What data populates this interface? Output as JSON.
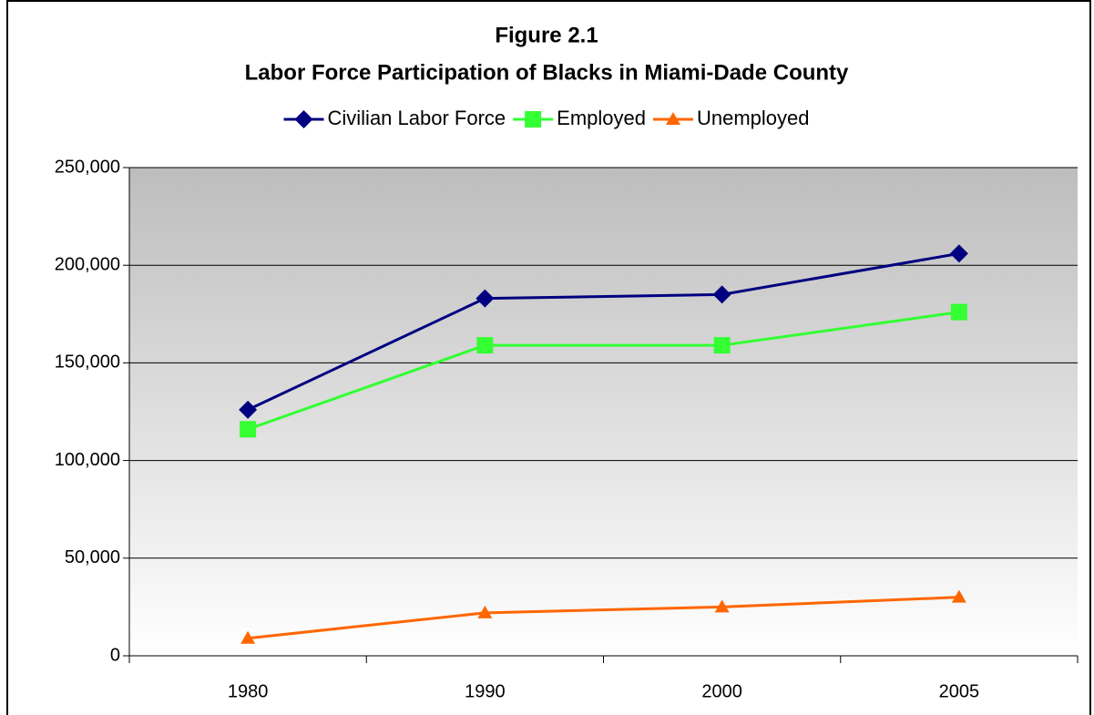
{
  "chart_data": {
    "type": "line",
    "title": "Figure 2.1",
    "subtitle": "Labor Force Participation of Blacks in Miami-Dade County",
    "categories": [
      "1980",
      "1990",
      "2000",
      "2005"
    ],
    "series": [
      {
        "name": "Civilian Labor Force",
        "color": "#000080",
        "marker": "diamond",
        "values": [
          126000,
          183000,
          185000,
          206000
        ]
      },
      {
        "name": "Employed",
        "color": "#33ff33",
        "marker": "square",
        "values": [
          116000,
          159000,
          159000,
          176000
        ]
      },
      {
        "name": "Unemployed",
        "color": "#ff6600",
        "marker": "triangle",
        "values": [
          9000,
          22000,
          25000,
          30000
        ]
      }
    ],
    "ylim": [
      0,
      250000
    ],
    "yticks": [
      0,
      {
        "value": 50000,
        "label": "50,000"
      },
      {
        "value": 100000,
        "label": "100,000"
      },
      {
        "value": 150000,
        "label": "150,000"
      },
      {
        "value": 200000,
        "label": "200,000"
      },
      {
        "value": 250000,
        "label": "250,000"
      }
    ],
    "grid": true,
    "legend": "top"
  }
}
